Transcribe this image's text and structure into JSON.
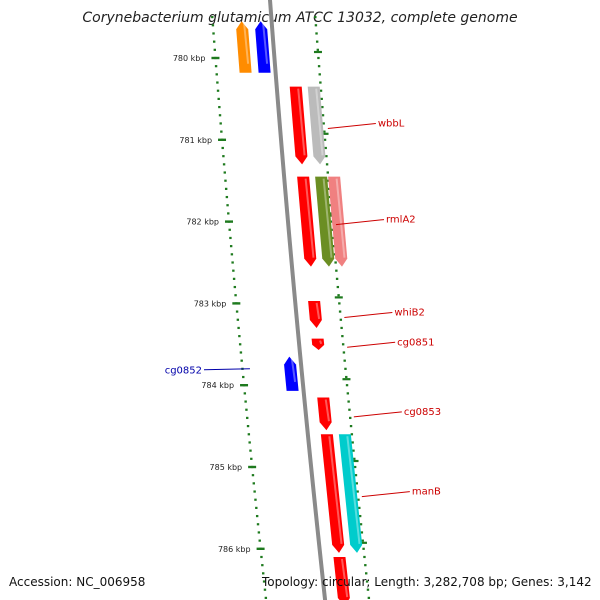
{
  "title": "Corynebacterium glutamicum ATCC 13032, complete genome",
  "footer": {
    "accession": "Accession: NC_006958",
    "topology": "Topology: circular; Length: 3,282,708 bp; Genes: 3,142"
  },
  "ticks": [
    {
      "label": "780 kbp",
      "kbp": 780
    },
    {
      "label": "781 kbp",
      "kbp": 781
    },
    {
      "label": "782 kbp",
      "kbp": 782
    },
    {
      "label": "783 kbp",
      "kbp": 783
    },
    {
      "label": "784 kbp",
      "kbp": 784
    },
    {
      "label": "785 kbp",
      "kbp": 785
    },
    {
      "label": "786 kbp",
      "kbp": 786
    }
  ],
  "genes": [
    {
      "name": "",
      "strand": "+",
      "start": 779.55,
      "end": 780.18,
      "lane": "outer2",
      "color": "#ff8c00",
      "label_color": ""
    },
    {
      "name": "",
      "strand": "+",
      "start": 779.55,
      "end": 780.18,
      "lane": "outer1",
      "color": "#0000ff",
      "label_color": ""
    },
    {
      "name": "",
      "strand": "-",
      "start": 780.35,
      "end": 781.3,
      "lane": "inner1",
      "color": "#ff0000",
      "label_color": ""
    },
    {
      "name": "wbbL",
      "strand": "-",
      "start": 780.35,
      "end": 781.3,
      "lane": "inner2",
      "color": "#bbbbbb",
      "label_color": "#cc0000"
    },
    {
      "name": "",
      "strand": "-",
      "start": 781.45,
      "end": 782.55,
      "lane": "inner1",
      "color": "#ff0000",
      "label_color": ""
    },
    {
      "name": "",
      "strand": "-",
      "start": 781.45,
      "end": 782.55,
      "lane": "inner2",
      "color": "#6b8e23",
      "label_color": ""
    },
    {
      "name": "rmlA2",
      "strand": "-",
      "start": 781.45,
      "end": 782.55,
      "lane": "inner3",
      "color": "#f08080",
      "label_color": "#cc0000"
    },
    {
      "name": "whiB2",
      "strand": "-",
      "start": 782.97,
      "end": 783.3,
      "lane": "inner1",
      "color": "#ff0000",
      "label_color": "#cc0000"
    },
    {
      "name": "cg0851",
      "strand": "-",
      "start": 783.43,
      "end": 783.57,
      "lane": "inner1",
      "color": "#ff0000",
      "label_color": "#cc0000"
    },
    {
      "name": "cg0852",
      "strand": "+",
      "start": 783.65,
      "end": 784.07,
      "lane": "outer1",
      "color": "#0000ff",
      "label_color": "#0000aa"
    },
    {
      "name": "cg0853",
      "strand": "-",
      "start": 784.15,
      "end": 784.55,
      "lane": "inner1",
      "color": "#ff0000",
      "label_color": "#cc0000"
    },
    {
      "name": "",
      "strand": "-",
      "start": 784.6,
      "end": 786.05,
      "lane": "inner1",
      "color": "#ff0000",
      "label_color": ""
    },
    {
      "name": "manB",
      "strand": "-",
      "start": 784.6,
      "end": 786.05,
      "lane": "inner2",
      "color": "#00cccc",
      "label_color": "#cc0000"
    },
    {
      "name": "",
      "strand": "-",
      "start": 786.1,
      "end": 786.7,
      "lane": "inner1",
      "color": "#ff0000",
      "label_color": ""
    }
  ]
}
